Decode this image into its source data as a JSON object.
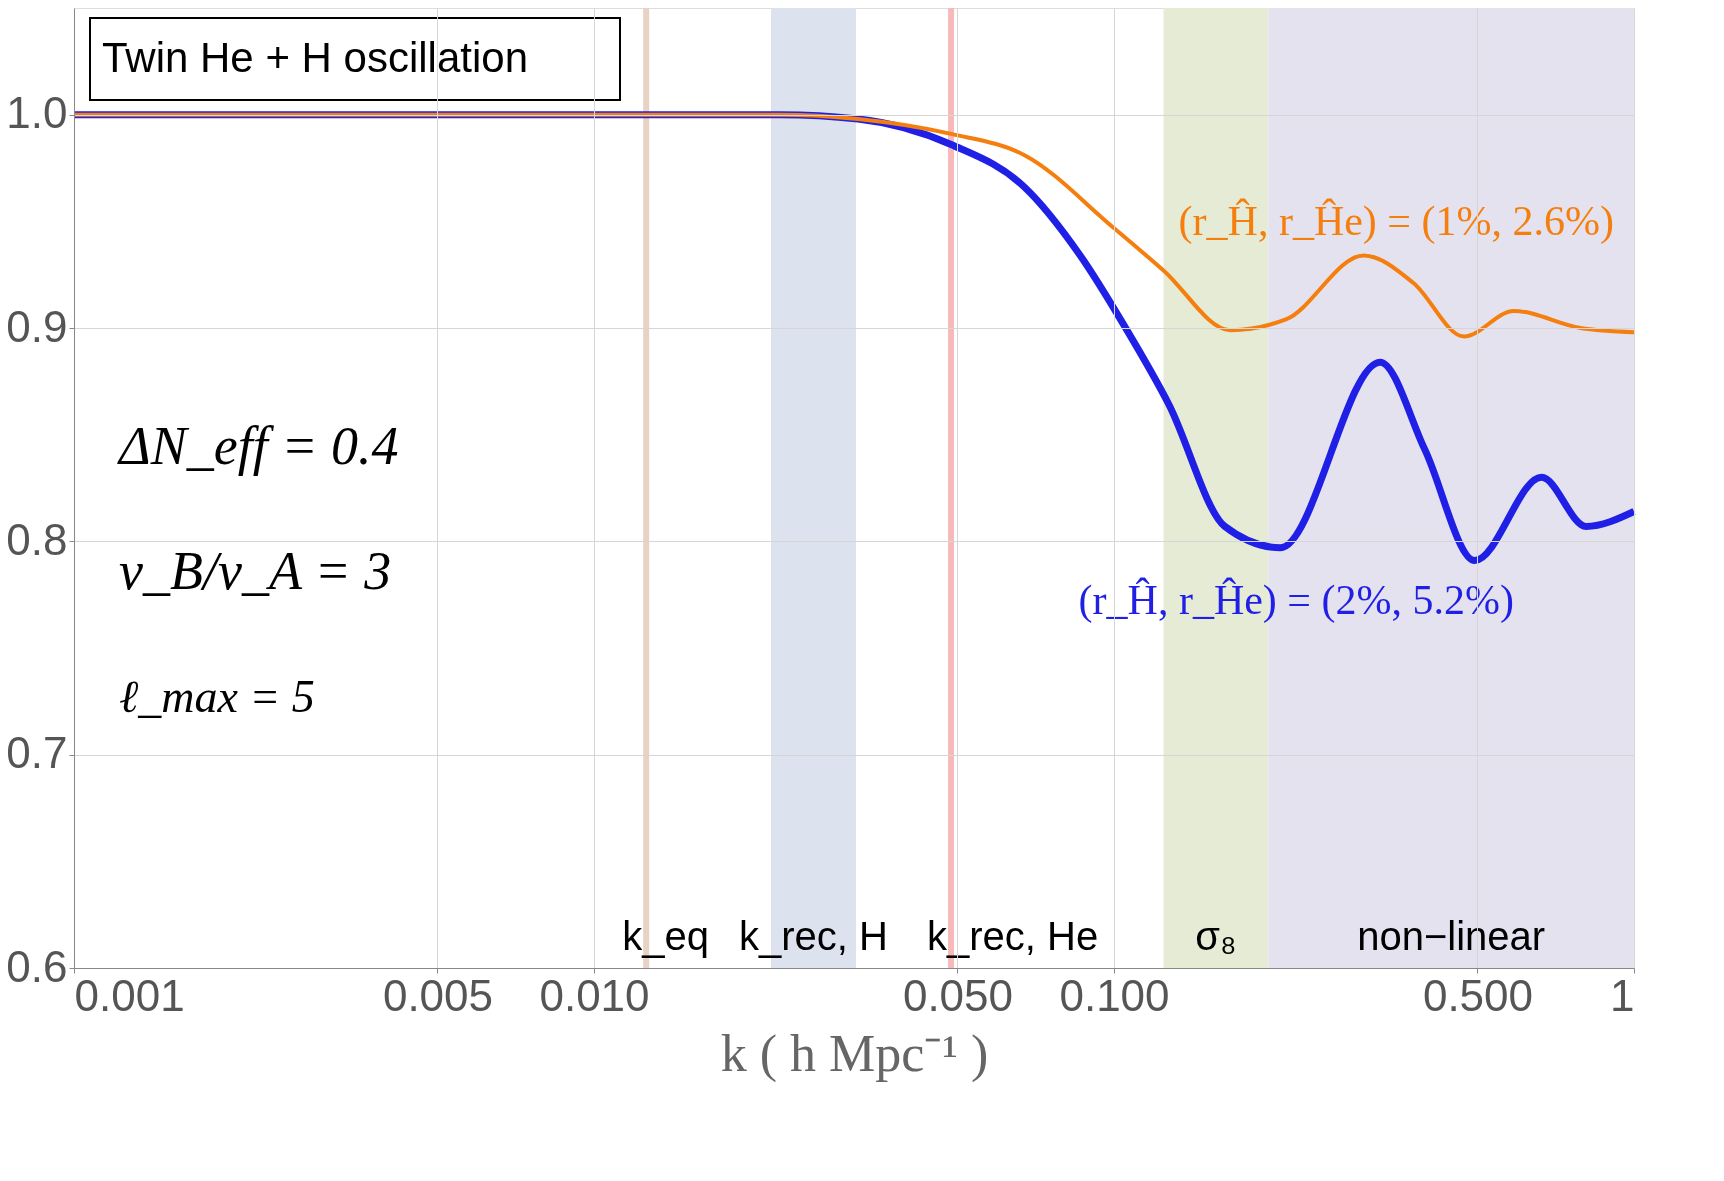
{
  "chart_data": {
    "type": "line",
    "xlabel": "k ( h Mpc⁻¹ )",
    "log": "x",
    "grid": true,
    "xlim": [
      0.001,
      1
    ],
    "ylim": [
      0.6,
      1.05
    ],
    "xticks": [
      {
        "value": 0.001,
        "label": "0.001"
      },
      {
        "value": 0.005,
        "label": "0.005"
      },
      {
        "value": 0.01,
        "label": "0.010"
      },
      {
        "value": 0.05,
        "label": "0.050"
      },
      {
        "value": 0.1,
        "label": "0.100"
      },
      {
        "value": 0.5,
        "label": "0.500"
      },
      1
    ],
    "yticks": [
      0.6,
      0.7,
      0.8,
      0.9,
      {
        "value": 1.0,
        "label": "1.0"
      }
    ],
    "series": [
      {
        "name": "(r_Ĥ, r_Ĥe) = (1%, 2.6%)",
        "color": "#f57f0e",
        "x": [
          0.001,
          0.0228,
          0.0322,
          0.0486,
          0.0673,
          0.0998,
          0.1245,
          0.1674,
          0.214,
          0.302,
          0.377,
          0.471,
          0.587,
          0.789,
          1
        ],
        "values": [
          1.0,
          1.0,
          0.998,
          0.991,
          0.981,
          0.947,
          0.927,
          0.899,
          0.904,
          0.934,
          0.921,
          0.896,
          0.908,
          0.9,
          0.898
        ]
      },
      {
        "name": "(r_Ĥ, r_Ĥe) = (2%, 5.2%)",
        "color": "#1f1fe6",
        "x": [
          0.001,
          0.0228,
          0.0322,
          0.0486,
          0.0673,
          0.0861,
          0.1047,
          0.1276,
          0.1633,
          0.2089,
          0.325,
          0.396,
          0.494,
          0.664,
          0.809,
          1
        ],
        "values": [
          1.0,
          1.0,
          0.998,
          0.986,
          0.966,
          0.934,
          0.901,
          0.864,
          0.807,
          0.797,
          0.884,
          0.843,
          0.791,
          0.83,
          0.807,
          0.814
        ]
      }
    ],
    "ref_lines": [
      {
        "axis": "x",
        "value": 0.0126,
        "label": "k_eq",
        "color": "#e8d2c4"
      },
      {
        "axis": "x",
        "value": 0.0486,
        "label": "k_rec, He",
        "color": "#f7b9b9"
      }
    ],
    "bands": [
      {
        "axis": "x",
        "from": 0.0219,
        "to": 0.0319,
        "label": "k_rec, H",
        "color": "#dce2ee"
      },
      {
        "axis": "x",
        "from": 0.1245,
        "to": 0.198,
        "label": "σ₈",
        "color": "#e6ebd5"
      },
      {
        "axis": "x",
        "from": 0.198,
        "to": 1,
        "label": "non−linear",
        "color": "#e5e2ef"
      }
    ],
    "annotations": [
      "Twin He + H oscillation",
      "ΔN_eff = 0.4",
      "v_B/v_A = 3",
      "ℓ_max = 5"
    ]
  }
}
